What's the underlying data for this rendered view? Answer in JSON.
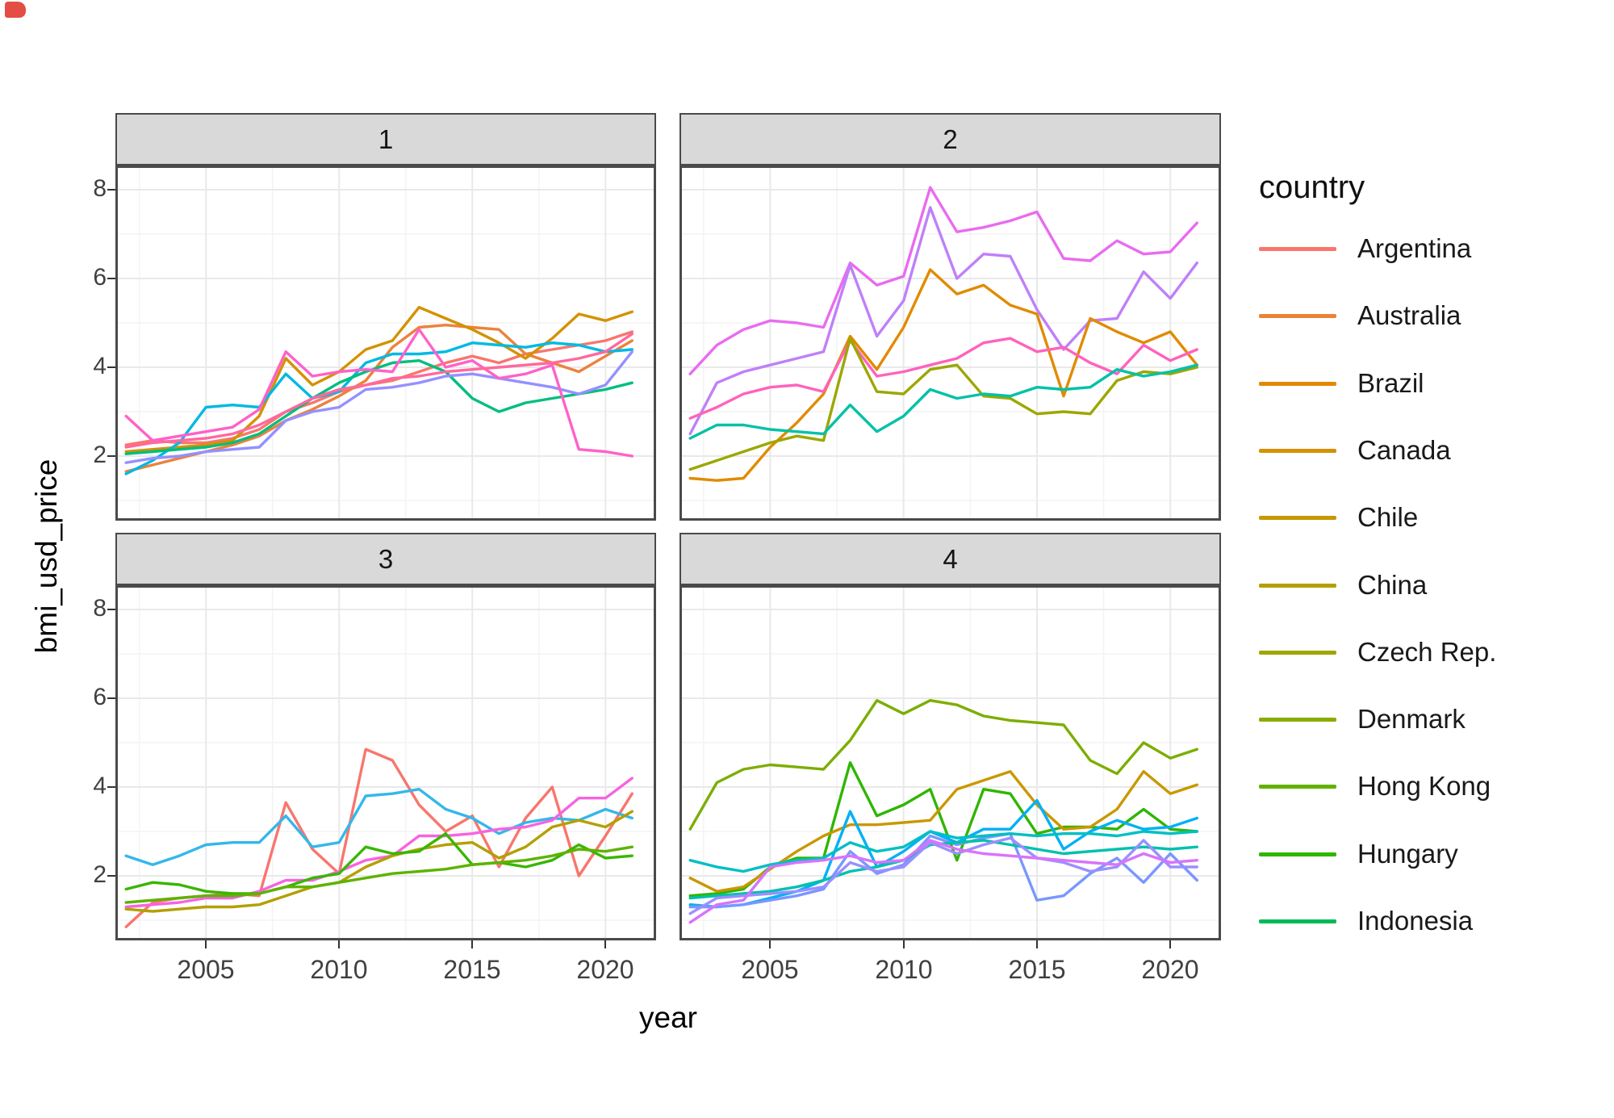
{
  "axes": {
    "x": {
      "label": "year",
      "ticks": [
        2005,
        2010,
        2015,
        2020
      ]
    },
    "y": {
      "label": "bmi_usd_price",
      "ticks": [
        8,
        6,
        4,
        2
      ]
    }
  },
  "legend": {
    "title": "country",
    "items": [
      {
        "label": "Argentina",
        "color": "#F8766D"
      },
      {
        "label": "Australia",
        "color": "#EB8335"
      },
      {
        "label": "Brazil",
        "color": "#E38900"
      },
      {
        "label": "Canada",
        "color": "#D69100"
      },
      {
        "label": "Chile",
        "color": "#C79800"
      },
      {
        "label": "China",
        "color": "#B4A000"
      },
      {
        "label": "Czech Rep.",
        "color": "#A1A500"
      },
      {
        "label": "Denmark",
        "color": "#89AC00"
      },
      {
        "label": "Hong Kong",
        "color": "#63B200"
      },
      {
        "label": "Hungary",
        "color": "#2FB600"
      },
      {
        "label": "Indonesia",
        "color": "#00BA57"
      }
    ]
  },
  "chart_data": {
    "type": "line",
    "title": "",
    "xlabel": "year",
    "ylabel": "bmi_usd_price",
    "x": [
      2002,
      2003,
      2004,
      2005,
      2006,
      2007,
      2008,
      2009,
      2010,
      2011,
      2012,
      2013,
      2014,
      2015,
      2016,
      2017,
      2018,
      2019,
      2020,
      2021
    ],
    "x_range": [
      2001.6,
      2021.9
    ],
    "y_range": [
      0.545,
      8.545
    ],
    "x_ticks": [
      2005,
      2010,
      2015,
      2020
    ],
    "x_minor_ticks": [
      2002.5,
      2007.5,
      2012.5,
      2017.5
    ],
    "y_ticks": [
      8,
      6,
      4,
      2
    ],
    "y_minor_ticks": [
      7,
      5,
      3,
      1
    ],
    "grid": true,
    "legend_position": "right",
    "facets": [
      {
        "label": "1",
        "series": [
          {
            "name": "coral-line",
            "color": "#F8766D",
            "values": [
              2.25,
              2.35,
              2.3,
              2.3,
              2.4,
              2.6,
              3.0,
              3.2,
              3.45,
              3.6,
              3.7,
              3.9,
              4.1,
              4.25,
              4.1,
              4.3,
              4.4,
              4.5,
              4.6,
              4.8
            ]
          },
          {
            "name": "orange-line",
            "color": "#EC823C",
            "values": [
              1.65,
              1.8,
              1.95,
              2.1,
              2.25,
              2.45,
              2.8,
              3.05,
              3.35,
              3.7,
              4.45,
              4.9,
              4.95,
              4.9,
              4.85,
              4.3,
              4.1,
              3.9,
              4.25,
              4.6
            ]
          },
          {
            "name": "golden-line",
            "color": "#D39200",
            "values": [
              2.1,
              2.15,
              2.2,
              2.25,
              2.35,
              2.9,
              4.2,
              3.6,
              3.9,
              4.4,
              4.6,
              5.35,
              5.1,
              4.85,
              4.55,
              4.2,
              4.65,
              5.2,
              5.05,
              5.25
            ]
          },
          {
            "name": "cyan-line",
            "color": "#00B9E3",
            "values": [
              1.6,
              1.9,
              2.3,
              3.1,
              3.15,
              3.1,
              3.85,
              3.3,
              3.45,
              4.1,
              4.3,
              4.3,
              4.35,
              4.55,
              4.5,
              4.45,
              4.55,
              4.5,
              4.35,
              4.4
            ]
          },
          {
            "name": "emerald-line",
            "color": "#00BE7D",
            "values": [
              2.05,
              2.1,
              2.15,
              2.2,
              2.3,
              2.5,
              2.9,
              3.3,
              3.65,
              3.9,
              4.1,
              4.15,
              3.9,
              3.3,
              3.0,
              3.2,
              3.3,
              3.4,
              3.5,
              3.65
            ]
          },
          {
            "name": "lavender-line",
            "color": "#9590FF",
            "values": [
              1.85,
              1.95,
              2.0,
              2.1,
              2.15,
              2.2,
              2.8,
              3.0,
              3.1,
              3.5,
              3.55,
              3.65,
              3.8,
              3.85,
              3.75,
              3.65,
              3.55,
              3.4,
              3.6,
              4.35
            ]
          },
          {
            "name": "hotpink-line",
            "color": "#FF61C9",
            "values": [
              2.9,
              2.35,
              2.45,
              2.55,
              2.65,
              3.05,
              4.35,
              3.8,
              3.9,
              3.95,
              3.9,
              4.85,
              4.0,
              4.15,
              3.75,
              3.85,
              4.05,
              2.15,
              2.1,
              2.0
            ]
          },
          {
            "name": "rose-line",
            "color": "#FF689E",
            "values": [
              2.2,
              2.3,
              2.35,
              2.4,
              2.5,
              2.7,
              3.0,
              3.3,
              3.5,
              3.6,
              3.75,
              3.8,
              3.9,
              3.95,
              4.0,
              4.05,
              4.1,
              4.2,
              4.35,
              4.75
            ]
          }
        ]
      },
      {
        "label": "2",
        "series": [
          {
            "name": "magenta-line",
            "color": "#E96BF0",
            "values": [
              3.85,
              4.5,
              4.85,
              5.05,
              5.0,
              4.9,
              6.35,
              5.85,
              6.05,
              8.05,
              7.05,
              7.15,
              7.3,
              7.5,
              6.45,
              6.4,
              6.85,
              6.55,
              6.6,
              7.25
            ]
          },
          {
            "name": "violet-line",
            "color": "#BF80F8",
            "values": [
              2.5,
              3.65,
              3.9,
              4.05,
              4.2,
              4.35,
              6.3,
              4.7,
              5.5,
              7.6,
              6.0,
              6.55,
              6.5,
              5.3,
              4.4,
              5.05,
              5.1,
              6.15,
              5.55,
              6.35
            ]
          },
          {
            "name": "orange-line",
            "color": "#E08B00",
            "values": [
              1.5,
              1.45,
              1.5,
              2.2,
              2.75,
              3.4,
              4.7,
              3.95,
              4.9,
              6.2,
              5.65,
              5.85,
              5.4,
              5.2,
              3.35,
              5.1,
              4.8,
              4.55,
              4.8,
              4.05
            ]
          },
          {
            "name": "pink-line",
            "color": "#FF62BC",
            "values": [
              2.85,
              3.1,
              3.4,
              3.55,
              3.6,
              3.45,
              4.6,
              3.8,
              3.9,
              4.05,
              4.2,
              4.55,
              4.65,
              4.35,
              4.45,
              4.1,
              3.85,
              4.5,
              4.15,
              4.4
            ]
          },
          {
            "name": "olive-line",
            "color": "#9CA700",
            "values": [
              1.7,
              1.9,
              2.1,
              2.3,
              2.45,
              2.35,
              4.65,
              3.45,
              3.4,
              3.95,
              4.05,
              3.35,
              3.3,
              2.95,
              3.0,
              2.95,
              3.7,
              3.9,
              3.85,
              4.0
            ]
          },
          {
            "name": "teal-line",
            "color": "#00C1A7",
            "values": [
              2.4,
              2.7,
              2.7,
              2.6,
              2.55,
              2.5,
              3.15,
              2.55,
              2.9,
              3.5,
              3.3,
              3.4,
              3.35,
              3.55,
              3.5,
              3.55,
              3.95,
              3.8,
              3.9,
              4.05
            ]
          }
        ]
      },
      {
        "label": "3",
        "series": [
          {
            "name": "red-line",
            "color": "#F8766D",
            "values": [
              0.85,
              1.4,
              1.5,
              1.55,
              1.6,
              1.55,
              3.65,
              2.6,
              2.05,
              4.85,
              4.6,
              3.6,
              3.0,
              3.35,
              2.2,
              3.3,
              4.0,
              2.0,
              2.9,
              3.85
            ]
          },
          {
            "name": "skyblue-line",
            "color": "#35B7E9",
            "values": [
              2.45,
              2.25,
              2.45,
              2.7,
              2.75,
              2.75,
              3.35,
              2.65,
              2.75,
              3.8,
              3.85,
              3.95,
              3.5,
              3.3,
              2.95,
              3.2,
              3.3,
              3.25,
              3.5,
              3.3
            ]
          },
          {
            "name": "magenta-line",
            "color": "#F763E0",
            "values": [
              1.3,
              1.35,
              1.4,
              1.5,
              1.5,
              1.65,
              1.9,
              1.9,
              2.1,
              2.35,
              2.45,
              2.9,
              2.9,
              2.95,
              3.05,
              3.1,
              3.25,
              3.75,
              3.75,
              4.2
            ]
          },
          {
            "name": "olive-line",
            "color": "#B3A000",
            "values": [
              1.25,
              1.2,
              1.25,
              1.3,
              1.3,
              1.35,
              1.55,
              1.75,
              1.85,
              2.2,
              2.45,
              2.6,
              2.7,
              2.75,
              2.4,
              2.65,
              3.1,
              3.25,
              3.1,
              3.45
            ]
          },
          {
            "name": "green-line",
            "color": "#39B600",
            "values": [
              1.7,
              1.85,
              1.8,
              1.65,
              1.6,
              1.6,
              1.75,
              1.95,
              2.05,
              2.65,
              2.5,
              2.55,
              2.95,
              2.25,
              2.3,
              2.2,
              2.35,
              2.7,
              2.4,
              2.45
            ]
          },
          {
            "name": "grass-line",
            "color": "#5DB300",
            "values": [
              1.4,
              1.45,
              1.5,
              1.55,
              1.55,
              1.6,
              1.75,
              1.75,
              1.85,
              1.95,
              2.05,
              2.1,
              2.15,
              2.25,
              2.3,
              2.35,
              2.45,
              2.6,
              2.55,
              2.65
            ]
          }
        ]
      },
      {
        "label": "4",
        "series": [
          {
            "name": "olivegreen-line",
            "color": "#7CAE00",
            "values": [
              3.05,
              4.1,
              4.4,
              4.5,
              4.45,
              4.4,
              5.05,
              5.95,
              5.65,
              5.95,
              5.85,
              5.6,
              5.5,
              5.45,
              5.4,
              4.6,
              4.3,
              5.0,
              4.65,
              4.85
            ]
          },
          {
            "name": "green-line",
            "color": "#2FB600",
            "values": [
              1.55,
              1.6,
              1.7,
              2.2,
              2.4,
              2.4,
              4.55,
              3.35,
              3.6,
              3.95,
              2.35,
              3.95,
              3.85,
              2.95,
              3.1,
              3.1,
              3.05,
              3.5,
              3.05,
              3.0
            ]
          },
          {
            "name": "gold-line",
            "color": "#C99800",
            "values": [
              1.95,
              1.65,
              1.75,
              2.15,
              2.55,
              2.9,
              3.15,
              3.15,
              3.2,
              3.25,
              3.95,
              4.15,
              4.35,
              3.6,
              3.05,
              3.1,
              3.5,
              4.35,
              3.85,
              4.05
            ]
          },
          {
            "name": "skyblue-line",
            "color": "#00B0F6",
            "values": [
              1.35,
              1.3,
              1.35,
              1.5,
              1.65,
              1.9,
              3.45,
              2.2,
              2.55,
              3.0,
              2.75,
              3.05,
              3.05,
              3.7,
              2.6,
              3.0,
              3.25,
              3.05,
              3.1,
              3.3
            ]
          },
          {
            "name": "blue-line",
            "color": "#7997FF",
            "values": [
              1.3,
              1.3,
              1.35,
              1.45,
              1.55,
              1.7,
              2.55,
              2.05,
              2.25,
              2.9,
              2.7,
              2.85,
              2.95,
              1.45,
              1.55,
              2.05,
              2.4,
              1.85,
              2.5,
              1.9
            ]
          },
          {
            "name": "teal-line",
            "color": "#00BFC4",
            "values": [
              2.35,
              2.2,
              2.1,
              2.25,
              2.35,
              2.4,
              2.75,
              2.55,
              2.65,
              3.0,
              2.85,
              2.9,
              2.95,
              2.9,
              2.95,
              2.95,
              2.9,
              3.0,
              2.95,
              3.0
            ]
          },
          {
            "name": "jade-line",
            "color": "#00C0AF",
            "values": [
              1.5,
              1.55,
              1.6,
              1.65,
              1.75,
              1.9,
              2.1,
              2.2,
              2.35,
              2.7,
              2.75,
              2.8,
              2.7,
              2.6,
              2.5,
              2.55,
              2.6,
              2.65,
              2.6,
              2.65
            ]
          },
          {
            "name": "lavender-line",
            "color": "#9B8FFF",
            "values": [
              1.15,
              1.5,
              1.55,
              1.6,
              1.65,
              1.75,
              2.3,
              2.1,
              2.2,
              2.75,
              2.5,
              2.7,
              2.85,
              2.4,
              2.3,
              2.1,
              2.2,
              2.8,
              2.2,
              2.2
            ]
          },
          {
            "name": "orchid-line",
            "color": "#D873FC",
            "values": [
              0.95,
              1.35,
              1.45,
              2.2,
              2.3,
              2.35,
              2.45,
              2.3,
              2.35,
              2.8,
              2.6,
              2.5,
              2.45,
              2.4,
              2.35,
              2.3,
              2.25,
              2.5,
              2.3,
              2.35
            ]
          }
        ]
      }
    ]
  }
}
